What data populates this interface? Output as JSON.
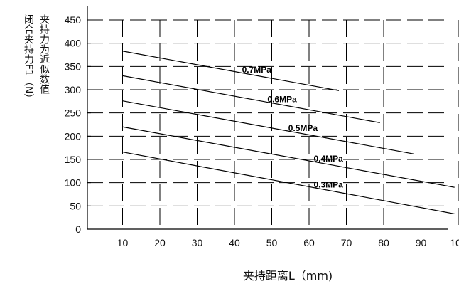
{
  "chart_data": {
    "type": "line",
    "xlabel": "夹持距离L（mm)",
    "ylabel_outer": "闭合夹持力F1（N）",
    "ylabel_inner": "夹持力为近似数值",
    "x_ticks": [
      "10",
      "20",
      "30",
      "40",
      "50",
      "60",
      "70",
      "80",
      "90",
      "100"
    ],
    "y_ticks": [
      "0",
      "50",
      "100",
      "150",
      "200",
      "250",
      "300",
      "350",
      "400",
      "450"
    ],
    "xlim": [
      0,
      100
    ],
    "ylim": [
      0,
      450
    ],
    "grid": true,
    "series": [
      {
        "name": "0.7MPa",
        "x": [
          10,
          68
        ],
        "y": [
          383,
          298
        ]
      },
      {
        "name": "0.6MPa",
        "x": [
          10,
          79
        ],
        "y": [
          330,
          229
        ]
      },
      {
        "name": "0.5MPa",
        "x": [
          10,
          88
        ],
        "y": [
          276,
          162
        ]
      },
      {
        "name": "0.4MPa",
        "x": [
          10,
          99
        ],
        "y": [
          220,
          90
        ]
      },
      {
        "name": "0.3MPa",
        "x": [
          10,
          99
        ],
        "y": [
          166,
          33
        ]
      }
    ]
  }
}
